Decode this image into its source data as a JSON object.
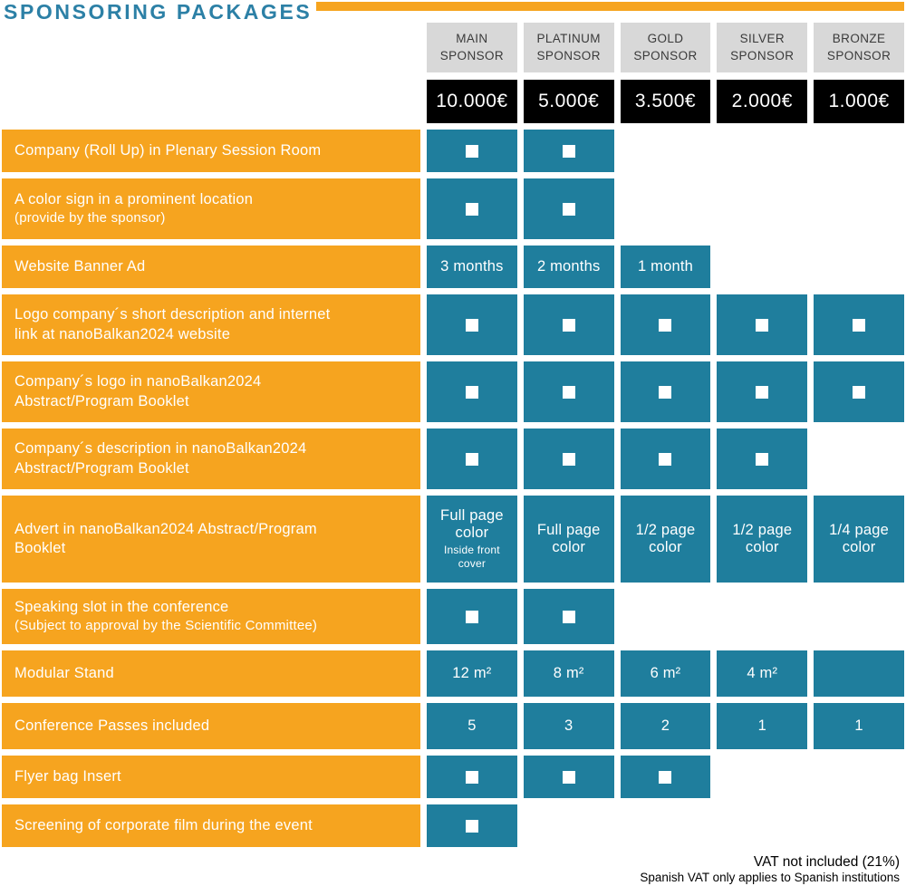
{
  "title": "SPONSORING PACKAGES",
  "colors": {
    "orange": "#F6A41F",
    "teal": "#1F7E9D",
    "header_gray": "#D8D8D8",
    "price_black": "#000000",
    "title_blue": "#2C80A6"
  },
  "columns": [
    {
      "name": "MAIN SPONSOR",
      "price": "10.000€"
    },
    {
      "name": "PLATINUM SPONSOR",
      "price": "5.000€"
    },
    {
      "name": "GOLD SPONSOR",
      "price": "3.500€"
    },
    {
      "name": "SILVER SPONSOR",
      "price": "2.000€"
    },
    {
      "name": "BRONZE SPONSOR",
      "price": "1.000€"
    }
  ],
  "check_symbol": "white-filled-square",
  "rows": [
    {
      "label": "Company (Roll Up) in Plenary Session Room",
      "cells": [
        {
          "v": "check"
        },
        {
          "v": "check"
        },
        null,
        null,
        null
      ]
    },
    {
      "label": "A color sign in a prominent location",
      "sub": "(provide by the sponsor)",
      "cells": [
        {
          "v": "check"
        },
        {
          "v": "check"
        },
        null,
        null,
        null
      ]
    },
    {
      "label": "Website Banner Ad",
      "cells": [
        {
          "v": "text",
          "t": "3 months"
        },
        {
          "v": "text",
          "t": "2 months"
        },
        {
          "v": "text",
          "t": "1 month"
        },
        null,
        null
      ]
    },
    {
      "label": "Logo company´s short description and internet",
      "label2": "link at nanoBalkan2024 website",
      "cells": [
        {
          "v": "check"
        },
        {
          "v": "check"
        },
        {
          "v": "check"
        },
        {
          "v": "check"
        },
        {
          "v": "check"
        }
      ]
    },
    {
      "label": "Company´s logo in nanoBalkan2024",
      "label2": "Abstract/Program Booklet",
      "cells": [
        {
          "v": "check"
        },
        {
          "v": "check"
        },
        {
          "v": "check"
        },
        {
          "v": "check"
        },
        {
          "v": "check"
        }
      ]
    },
    {
      "label": "Company´s description in nanoBalkan2024",
      "label2": "Abstract/Program Booklet",
      "cells": [
        {
          "v": "check"
        },
        {
          "v": "check"
        },
        {
          "v": "check"
        },
        {
          "v": "check"
        },
        null
      ]
    },
    {
      "label": "Advert in nanoBalkan2024 Abstract/Program",
      "label2": "Booklet",
      "cells": [
        {
          "v": "text",
          "t": "Full page color",
          "s": "Inside front cover"
        },
        {
          "v": "text",
          "t": "Full page color"
        },
        {
          "v": "text",
          "t": "1/2 page color"
        },
        {
          "v": "text",
          "t": "1/2 page color"
        },
        {
          "v": "text",
          "t": "1/4 page color"
        }
      ]
    },
    {
      "label": "Speaking slot in the conference",
      "sub": "(Subject to approval by the Scientific Committee)",
      "cells": [
        {
          "v": "check"
        },
        {
          "v": "check"
        },
        null,
        null,
        null
      ]
    },
    {
      "label": "Modular Stand",
      "cells": [
        {
          "v": "text",
          "t": "12 m²"
        },
        {
          "v": "text",
          "t": "8 m²"
        },
        {
          "v": "text",
          "t": "6 m²"
        },
        {
          "v": "text",
          "t": "4 m²"
        },
        {
          "v": "blank"
        }
      ]
    },
    {
      "label": "Conference Passes included",
      "cells": [
        {
          "v": "text",
          "t": "5"
        },
        {
          "v": "text",
          "t": "3"
        },
        {
          "v": "text",
          "t": "2"
        },
        {
          "v": "text",
          "t": "1"
        },
        {
          "v": "text",
          "t": "1"
        }
      ]
    },
    {
      "label": "Flyer bag Insert",
      "cells": [
        {
          "v": "check"
        },
        {
          "v": "check"
        },
        {
          "v": "check"
        },
        null,
        null
      ]
    },
    {
      "label": "Screening of corporate film during the event",
      "cells": [
        {
          "v": "check"
        },
        null,
        null,
        null,
        null
      ]
    }
  ],
  "footer": {
    "line1": "VAT not included (21%)",
    "line2": "Spanish VAT only applies to Spanish institutions"
  }
}
